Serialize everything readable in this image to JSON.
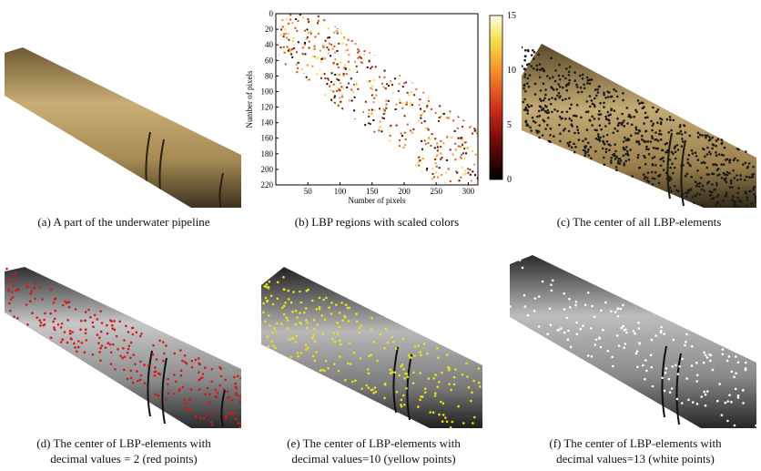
{
  "figure": {
    "panels": [
      {
        "id": "a",
        "caption": "(a) A part of the underwater pipeline",
        "kind": "photo",
        "tint": "#b79a62",
        "dots": "none"
      },
      {
        "id": "b",
        "caption": "(b) LBP regions with scaled colors",
        "kind": "lbp-heatmap"
      },
      {
        "id": "c",
        "caption": "(c) The center of all LBP-elements",
        "kind": "photo",
        "tint": "#a98d55",
        "dots": "#1a1a1a"
      },
      {
        "id": "d",
        "caption": "(d) The center of LBP-elements with decimal values = 2 (red points)",
        "caption_lines": [
          "(d) The center of LBP-elements with",
          "decimal values = 2 (red points)"
        ],
        "kind": "photo-gray",
        "dots": "#d11a1a"
      },
      {
        "id": "e",
        "caption": "(e) The center of LBP-elements with decimal values=10 (yellow points)",
        "caption_lines": [
          "(e) The center of LBP-elements with",
          "decimal values=10 (yellow points)"
        ],
        "kind": "photo-gray",
        "dots": "#e7e21a"
      },
      {
        "id": "f",
        "caption": "(f) The center of LBP-elements with decimal values=13 (white points)",
        "caption_lines": [
          "(f) The center of LBP-elements with",
          "decimal values=13 (white points)"
        ],
        "kind": "photo-gray",
        "dots": "#ffffff"
      }
    ]
  },
  "chart_data": {
    "type": "heatmap",
    "xlabel": "Number of pixels",
    "ylabel": "Number of pixels",
    "xticks": [
      50,
      100,
      150,
      200,
      250,
      300
    ],
    "yticks": [
      0,
      20,
      40,
      60,
      80,
      100,
      120,
      140,
      160,
      180,
      200,
      220
    ],
    "xlim": [
      0,
      315
    ],
    "ylim": [
      0,
      220
    ],
    "colorbar": {
      "ticks": [
        0,
        5,
        10,
        15
      ],
      "min": 0,
      "max": 15
    }
  },
  "colors": {
    "gray_dark": "#3a3a3a",
    "gray_light": "#cfcfcf"
  }
}
